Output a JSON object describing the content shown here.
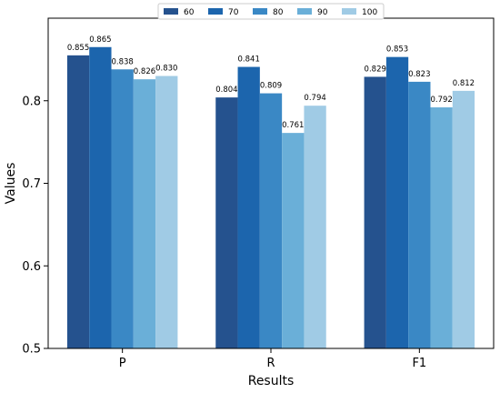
{
  "chart_data": {
    "type": "bar",
    "categories": [
      "P",
      "R",
      "F1"
    ],
    "series": [
      {
        "name": "60",
        "values": [
          0.855,
          0.804,
          0.829
        ],
        "labels": [
          "0.855",
          "0.804",
          "0.829"
        ],
        "color": "#25528e"
      },
      {
        "name": "70",
        "values": [
          0.865,
          0.841,
          0.853
        ],
        "labels": [
          "0.865",
          "0.841",
          "0.853"
        ],
        "color": "#1c65ad"
      },
      {
        "name": "80",
        "values": [
          0.838,
          0.809,
          0.823
        ],
        "labels": [
          "0.838",
          "0.809",
          "0.823"
        ],
        "color": "#3a88c5"
      },
      {
        "name": "90",
        "values": [
          0.826,
          0.761,
          0.792
        ],
        "labels": [
          "0.826",
          "0.761",
          "0.792"
        ],
        "color": "#6aafd8"
      },
      {
        "name": "100",
        "values": [
          0.83,
          0.794,
          0.812
        ],
        "labels": [
          "0.830",
          "0.794",
          "0.812"
        ],
        "color": "#a0cbe5"
      }
    ],
    "title": "",
    "xlabel": "Results",
    "ylabel": "Values",
    "ylim": [
      0.5,
      0.9
    ],
    "yticks": [
      "0.5",
      "0.6",
      "0.7",
      "0.8"
    ],
    "grid": false,
    "legend_position": "top-center"
  }
}
